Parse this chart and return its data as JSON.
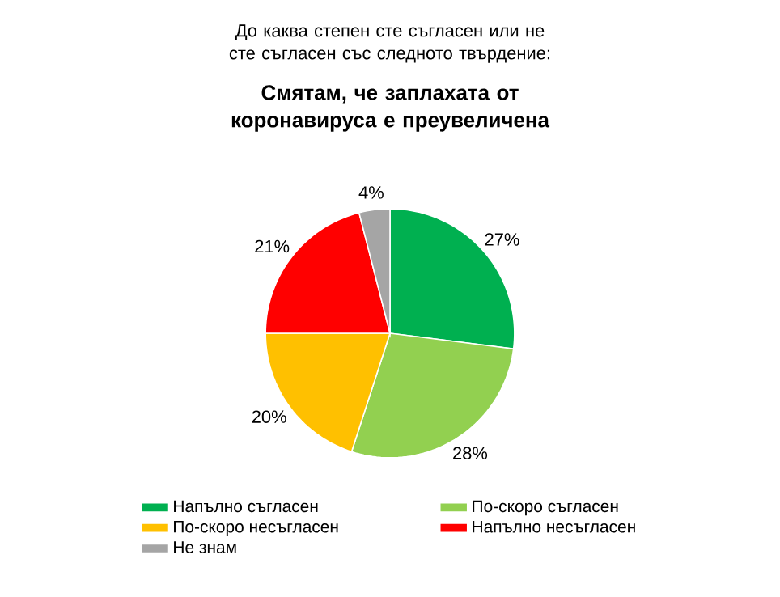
{
  "chart_data": {
    "type": "pie",
    "subtitle": "До каква степен сте съгласен или не сте съгласен със следното твърдение:",
    "title": "Смятам, че заплахата от коронавируса е преувеличена",
    "categories": [
      "Напълно съгласен",
      "По-скоро съгласен",
      "По-скоро несъгласен",
      "Напълно несъгласен",
      "Не знам"
    ],
    "values": [
      27,
      28,
      20,
      21,
      4
    ],
    "value_labels": [
      "27%",
      "28%",
      "20%",
      "21%",
      "4%"
    ],
    "colors": [
      "#00b050",
      "#92d050",
      "#ffc000",
      "#ff0000",
      "#a5a5a5"
    ],
    "legend": "bottom"
  }
}
